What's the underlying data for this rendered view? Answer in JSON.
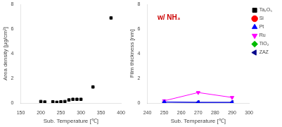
{
  "chart_data": [
    {
      "type": "scatter",
      "x": [
        200,
        210,
        230,
        240,
        250,
        260,
        270,
        280,
        290,
        300,
        330,
        375
      ],
      "values": [
        0.12,
        0.08,
        0.1,
        0.06,
        0.1,
        0.12,
        0.25,
        0.3,
        0.3,
        0.3,
        1.3,
        6.9
      ],
      "color": "#000000",
      "marker": "square",
      "xlabel": "Sub. Temperature [℃]",
      "ylabel": "Area density [μg/cm²]",
      "xlim": [
        150,
        400
      ],
      "ylim": [
        0,
        8
      ],
      "xticks": [
        150,
        200,
        250,
        300,
        350,
        400
      ],
      "yticks": [
        0,
        2,
        4,
        6,
        8
      ],
      "grid": false
    },
    {
      "type": "line",
      "series": [
        {
          "name": "Ta₂O₅",
          "color": "#000000",
          "marker": "square",
          "x": [],
          "values": []
        },
        {
          "name": "Si",
          "color": "#ff0000",
          "marker": "circle",
          "x": [],
          "values": []
        },
        {
          "name": "Pt",
          "color": "#0000ff",
          "marker": "triangle_up",
          "x": [
            250,
            270,
            290
          ],
          "values": [
            0.08,
            0.05,
            0.05
          ]
        },
        {
          "name": "Ru",
          "color": "#ff00ff",
          "marker": "triangle_down",
          "x": [
            250,
            270,
            290
          ],
          "values": [
            0.18,
            0.85,
            0.45
          ]
        },
        {
          "name": "TiO₂",
          "color": "#00bb00",
          "marker": "diamond",
          "x": [],
          "values": []
        },
        {
          "name": "ZAZ",
          "color": "#00008b",
          "marker": "triangle_left",
          "x": [
            250,
            270,
            290
          ],
          "values": [
            0.07,
            0.05,
            0.05
          ]
        }
      ],
      "xlabel": "Sub. Temperature [℃]",
      "ylabel": "Film thickness [nm]",
      "xlim": [
        240,
        300
      ],
      "ylim": [
        0,
        8
      ],
      "xticks": [
        240,
        250,
        260,
        270,
        280,
        290,
        300
      ],
      "yticks": [
        0,
        2,
        4,
        6,
        8
      ],
      "annotations": [
        {
          "text": "w/ NH₃",
          "color": "#cc0000"
        }
      ],
      "legend": "right",
      "grid": false
    }
  ]
}
